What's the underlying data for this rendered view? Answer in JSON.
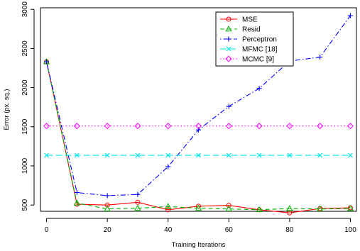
{
  "chart_data": {
    "type": "line",
    "title": "",
    "xlabel": "Training Iterations",
    "ylabel": "Error (px. sq.)",
    "xlim": [
      -2,
      102
    ],
    "ylim": [
      420,
      3020
    ],
    "x_ticks": [
      0,
      20,
      40,
      60,
      80,
      100
    ],
    "y_ticks": [
      500,
      1000,
      1500,
      2000,
      2500,
      3000
    ],
    "grid": false,
    "legend_position": "top-right",
    "series": [
      {
        "name": "MSE",
        "color": "#ff0000",
        "line": "solid",
        "marker": "circle",
        "x": [
          0,
          10,
          20,
          30,
          40,
          50,
          60,
          70,
          80,
          90,
          100
        ],
        "y": [
          2330,
          510,
          500,
          535,
          440,
          485,
          495,
          440,
          400,
          455,
          465
        ]
      },
      {
        "name": "Resid",
        "color": "#00b300",
        "line": "dashed",
        "marker": "triangle",
        "x": [
          0,
          10,
          20,
          30,
          40,
          50,
          60,
          70,
          80,
          90,
          100
        ],
        "y": [
          2330,
          525,
          450,
          460,
          480,
          460,
          450,
          440,
          455,
          450,
          455
        ]
      },
      {
        "name": "Perceptron",
        "color": "#0000ff",
        "line": "dotdash",
        "marker": "plus",
        "x": [
          0,
          10,
          20,
          30,
          40,
          50,
          60,
          70,
          80,
          90,
          100
        ],
        "y": [
          2330,
          660,
          620,
          635,
          990,
          1460,
          1760,
          1990,
          2340,
          2390,
          2920
        ]
      },
      {
        "name": "MFMC [18]",
        "color": "#00e5e5",
        "line": "longdash",
        "marker": "cross",
        "x": [
          0,
          10,
          20,
          30,
          40,
          50,
          60,
          70,
          80,
          90,
          100
        ],
        "y": [
          1135,
          1135,
          1135,
          1135,
          1135,
          1135,
          1135,
          1135,
          1135,
          1135,
          1135
        ]
      },
      {
        "name": "MCMC [9]",
        "color": "#ff00ff",
        "line": "dotted",
        "marker": "diamond",
        "x": [
          0,
          10,
          20,
          30,
          40,
          50,
          60,
          70,
          80,
          90,
          100
        ],
        "y": [
          1510,
          1510,
          1510,
          1510,
          1510,
          1510,
          1510,
          1510,
          1510,
          1510,
          1510
        ]
      }
    ]
  }
}
